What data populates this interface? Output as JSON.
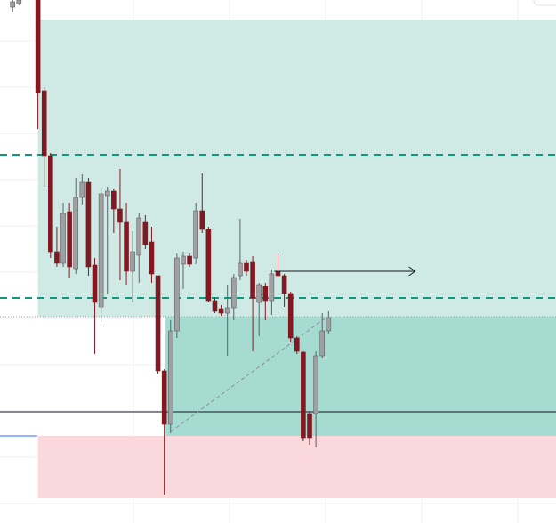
{
  "chart_data": {
    "type": "candlestick",
    "xlim": [
      -2,
      86
    ],
    "ylim": [
      0,
      588
    ],
    "up_color": "#a0a0a0",
    "down_color": "#801922",
    "x": [
      0,
      1,
      4,
      5,
      6,
      7,
      8,
      9,
      10,
      11,
      12,
      13,
      14,
      15,
      16,
      17,
      18,
      19,
      20,
      21,
      22,
      23,
      24,
      25,
      26,
      27,
      28,
      29,
      30,
      31,
      32,
      33,
      34,
      35,
      36,
      37,
      38,
      39,
      40,
      41,
      42,
      43,
      44,
      45,
      46,
      47,
      48,
      49,
      50
    ],
    "open": [
      580,
      584,
      588,
      486,
      413,
      305,
      292,
      350,
      286,
      366,
      383,
      290,
      243,
      368,
      373,
      353,
      338,
      283,
      301,
      338,
      316,
      278,
      171,
      111,
      216,
      291,
      300,
      298,
      351,
      330,
      250,
      241,
      236,
      242,
      278,
      292,
      293,
      248,
      266,
      250,
      283,
      278,
      258,
      208,
      192,
      123,
      123,
      188,
      216
    ],
    "high": [
      588,
      588,
      588,
      490,
      416,
      333,
      360,
      360,
      388,
      392,
      388,
      298,
      378,
      378,
      376,
      398,
      360,
      328,
      348,
      346,
      333,
      278,
      173,
      228,
      303,
      305,
      303,
      360,
      393,
      333,
      253,
      245,
      268,
      280,
      342,
      296,
      300,
      270,
      270,
      285,
      303,
      280,
      260,
      210,
      193,
      126,
      193,
      236,
      238
    ],
    "low": [
      574,
      582,
      443,
      378,
      298,
      288,
      288,
      276,
      280,
      358,
      278,
      190,
      226,
      258,
      326,
      273,
      268,
      248,
      270,
      308,
      270,
      168,
      32,
      101,
      208,
      263,
      288,
      291,
      326,
      248,
      236,
      233,
      188,
      228,
      273,
      278,
      193,
      210,
      228,
      234,
      276,
      243,
      203,
      190,
      92,
      88,
      85,
      185,
      213
    ],
    "close": [
      586,
      588,
      484,
      413,
      305,
      292,
      348,
      288,
      366,
      383,
      288,
      248,
      370,
      373,
      353,
      338,
      283,
      305,
      343,
      313,
      280,
      171,
      111,
      216,
      298,
      300,
      291,
      351,
      330,
      250,
      238,
      236,
      242,
      276,
      292,
      283,
      253,
      268,
      250,
      280,
      278,
      258,
      208,
      193,
      96,
      96,
      188,
      216,
      231
    ],
    "zones": [
      {
        "x_start": 4,
        "top": 566,
        "bottom": 232,
        "color": "#cfeae4"
      },
      {
        "x_start": 24.2,
        "top": 232,
        "bottom": 98,
        "color": "#a6dbd1"
      },
      {
        "x_start": 4,
        "top": 98,
        "bottom": 28,
        "color": "#fad8db"
      }
    ],
    "dashed_levels": [
      414,
      253
    ],
    "dashed_color": "#12977f",
    "horizontal_line": 125,
    "arrow": {
      "level": 283,
      "x_start": 41.4,
      "x_end": 63.7
    },
    "diagonal": {
      "x1": 25.1,
      "y1": 103,
      "x2": 49.4,
      "y2": 230
    }
  }
}
